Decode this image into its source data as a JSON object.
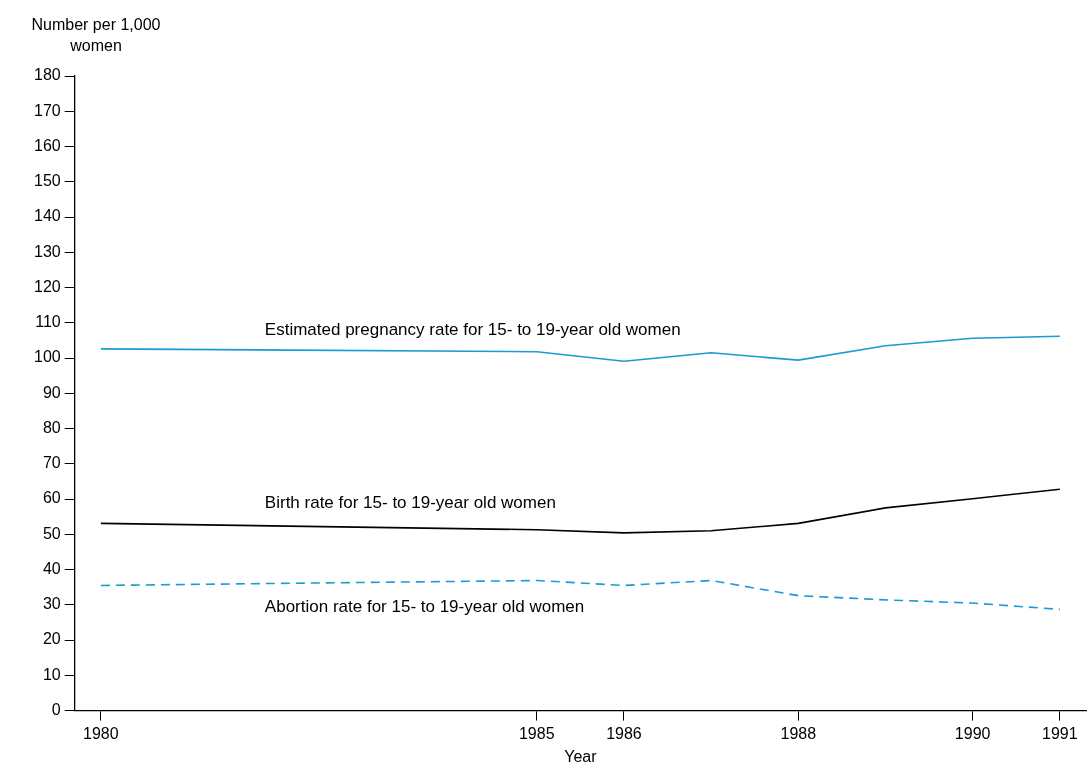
{
  "chart_data": {
    "type": "line",
    "xlabel": "Year",
    "ylabel": "Number per 1,000 women",
    "x": [
      1980,
      1985,
      1986,
      1987,
      1988,
      1989,
      1990,
      1991
    ],
    "xlim": [
      1979.7,
      1991.3
    ],
    "xticks": [
      1980,
      1985,
      1986,
      1988,
      1990,
      1991
    ],
    "ylim": [
      0,
      180
    ],
    "yticks": [
      0,
      10,
      20,
      30,
      40,
      50,
      60,
      70,
      80,
      90,
      100,
      110,
      120,
      130,
      140,
      150,
      160,
      170,
      180
    ],
    "grid": false,
    "legend": false,
    "marker": "none",
    "series": [
      {
        "name": "Estimated pregnancy rate for 15- to 19-year old women",
        "color": "#1a9bd7",
        "line_style": "solid",
        "values": [
          102.6,
          101.8,
          99.1,
          101.5,
          99.4,
          103.5,
          105.6,
          106.2
        ]
      },
      {
        "name": "Birth rate for 15- to 19-year old women",
        "color": "#000000",
        "line_style": "solid",
        "values": [
          53.1,
          51.3,
          50.4,
          51,
          53.1,
          57.5,
          60.1,
          62.8
        ]
      },
      {
        "name": "Abortion rate for 15- to 19-year old women",
        "color": "#1a9bd7",
        "line_style": "dashed",
        "values": [
          35.5,
          36.9,
          35.5,
          36.9,
          32.6,
          31.4,
          30.5,
          28.7
        ]
      }
    ]
  }
}
